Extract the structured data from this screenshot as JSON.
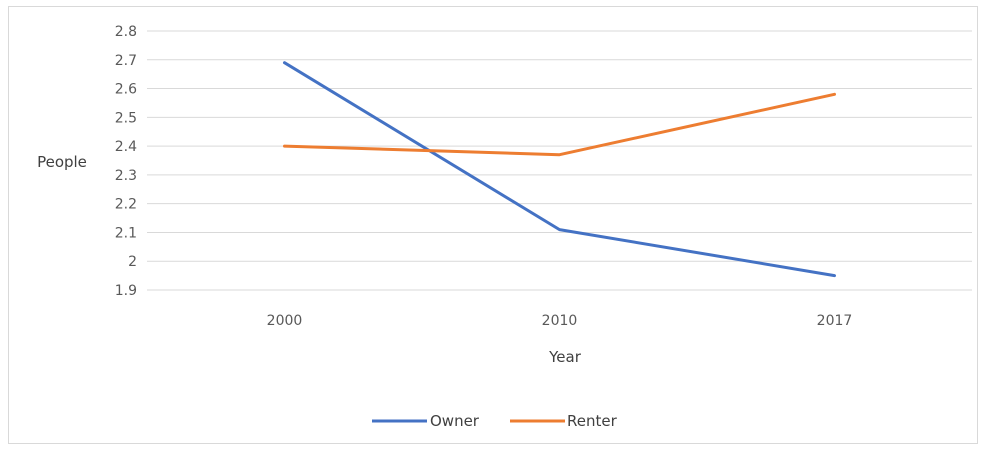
{
  "chart_data": {
    "type": "line",
    "categories": [
      "2000",
      "2010",
      "2017"
    ],
    "series": [
      {
        "name": "Owner",
        "values": [
          2.69,
          2.11,
          1.95
        ],
        "color": "#4472C4"
      },
      {
        "name": "Renter",
        "values": [
          2.4,
          2.37,
          2.58
        ],
        "color": "#ED7D31"
      }
    ],
    "yticks": [
      "1.9",
      "2",
      "2.1",
      "2.2",
      "2.3",
      "2.4",
      "2.5",
      "2.6",
      "2.7",
      "2.8"
    ],
    "ylim": [
      1.9,
      2.8
    ],
    "xlabel": "Year",
    "ylabel": "People",
    "grid": true,
    "legend_position": "bottom"
  }
}
